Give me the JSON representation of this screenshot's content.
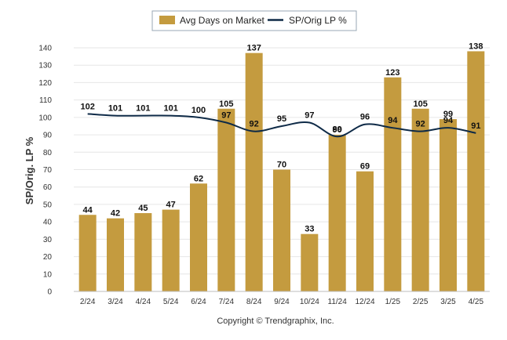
{
  "footer": "Copyright © Trendgraphix, Inc.",
  "colors": {
    "bar": "#C49B3F",
    "line": "#0E2A47",
    "grid": "#E6E6E6"
  },
  "chart_data": {
    "type": "bar",
    "title": "",
    "ylabel": "SP/Orig. LP %",
    "ylim": [
      0,
      140
    ],
    "yticks": [
      0,
      10,
      20,
      30,
      40,
      50,
      60,
      70,
      80,
      90,
      100,
      110,
      120,
      130,
      140
    ],
    "grid": true,
    "legend_position": "top-center",
    "categories": [
      "2/24",
      "3/24",
      "4/24",
      "5/24",
      "6/24",
      "7/24",
      "8/24",
      "9/24",
      "10/24",
      "11/24",
      "12/24",
      "1/25",
      "2/25",
      "3/25",
      "4/25"
    ],
    "series": [
      {
        "name": "Avg Days on Market",
        "type": "bar",
        "values": [
          44,
          42,
          45,
          47,
          62,
          105,
          137,
          70,
          33,
          90,
          69,
          123,
          105,
          99,
          138
        ]
      },
      {
        "name": "SP/Orig LP %",
        "type": "line",
        "values": [
          102,
          101,
          101,
          101,
          100,
          97,
          92,
          95,
          97,
          89,
          96,
          94,
          92,
          94,
          91
        ]
      }
    ]
  }
}
